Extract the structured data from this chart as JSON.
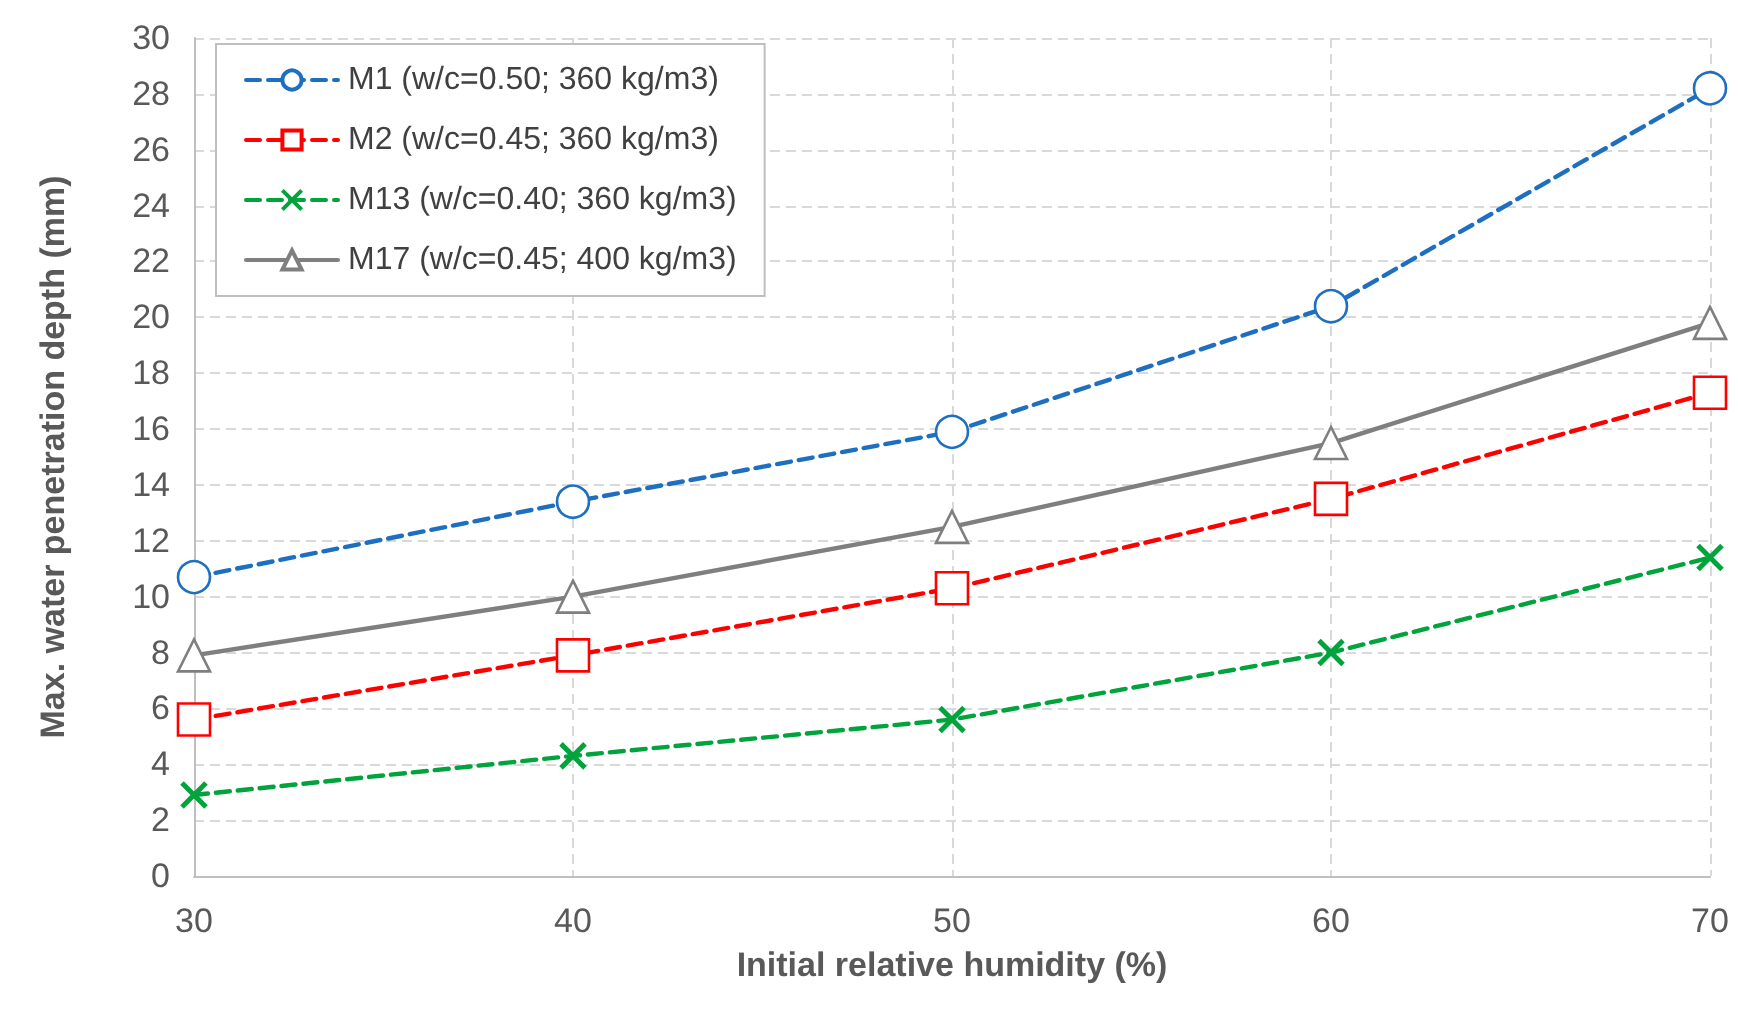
{
  "chart_data": {
    "type": "line",
    "xlabel": "Initial relative humidity (%)",
    "ylabel": "Max. water penetration depth (mm)",
    "x": [
      30,
      40,
      50,
      60,
      70
    ],
    "series": [
      {
        "name": "M1 (w/c=0.50; 360 kg/m3)",
        "color": "#1f6fc0",
        "marker": "circle",
        "line_style": "dashed",
        "values": [
          10.7,
          13.4,
          15.9,
          20.4,
          28.2
        ]
      },
      {
        "name": "M2 (w/c=0.45; 360 kg/m3)",
        "color": "#ff0000",
        "marker": "square",
        "line_style": "dashed",
        "values": [
          5.6,
          7.9,
          10.3,
          13.5,
          17.3
        ]
      },
      {
        "name": "M13 (w/c=0.40; 360 kg/m3)",
        "color": "#00a33c",
        "marker": "cross",
        "line_style": "dashed",
        "values": [
          2.9,
          4.3,
          5.6,
          8.0,
          11.4
        ]
      },
      {
        "name": "M17 (w/c=0.45; 400 kg/m3)",
        "color": "#7f7f7f",
        "marker": "triangle",
        "line_style": "solid",
        "values": [
          7.9,
          10.0,
          12.5,
          15.5,
          19.8
        ]
      }
    ],
    "xlim": [
      30,
      70
    ],
    "xticks": [
      30,
      40,
      50,
      60,
      70
    ],
    "ylim": [
      0,
      30
    ],
    "yticks": [
      0,
      2,
      4,
      6,
      8,
      10,
      12,
      14,
      16,
      18,
      20,
      22,
      24,
      26,
      28,
      30
    ],
    "grid": true,
    "legend": "top left"
  }
}
